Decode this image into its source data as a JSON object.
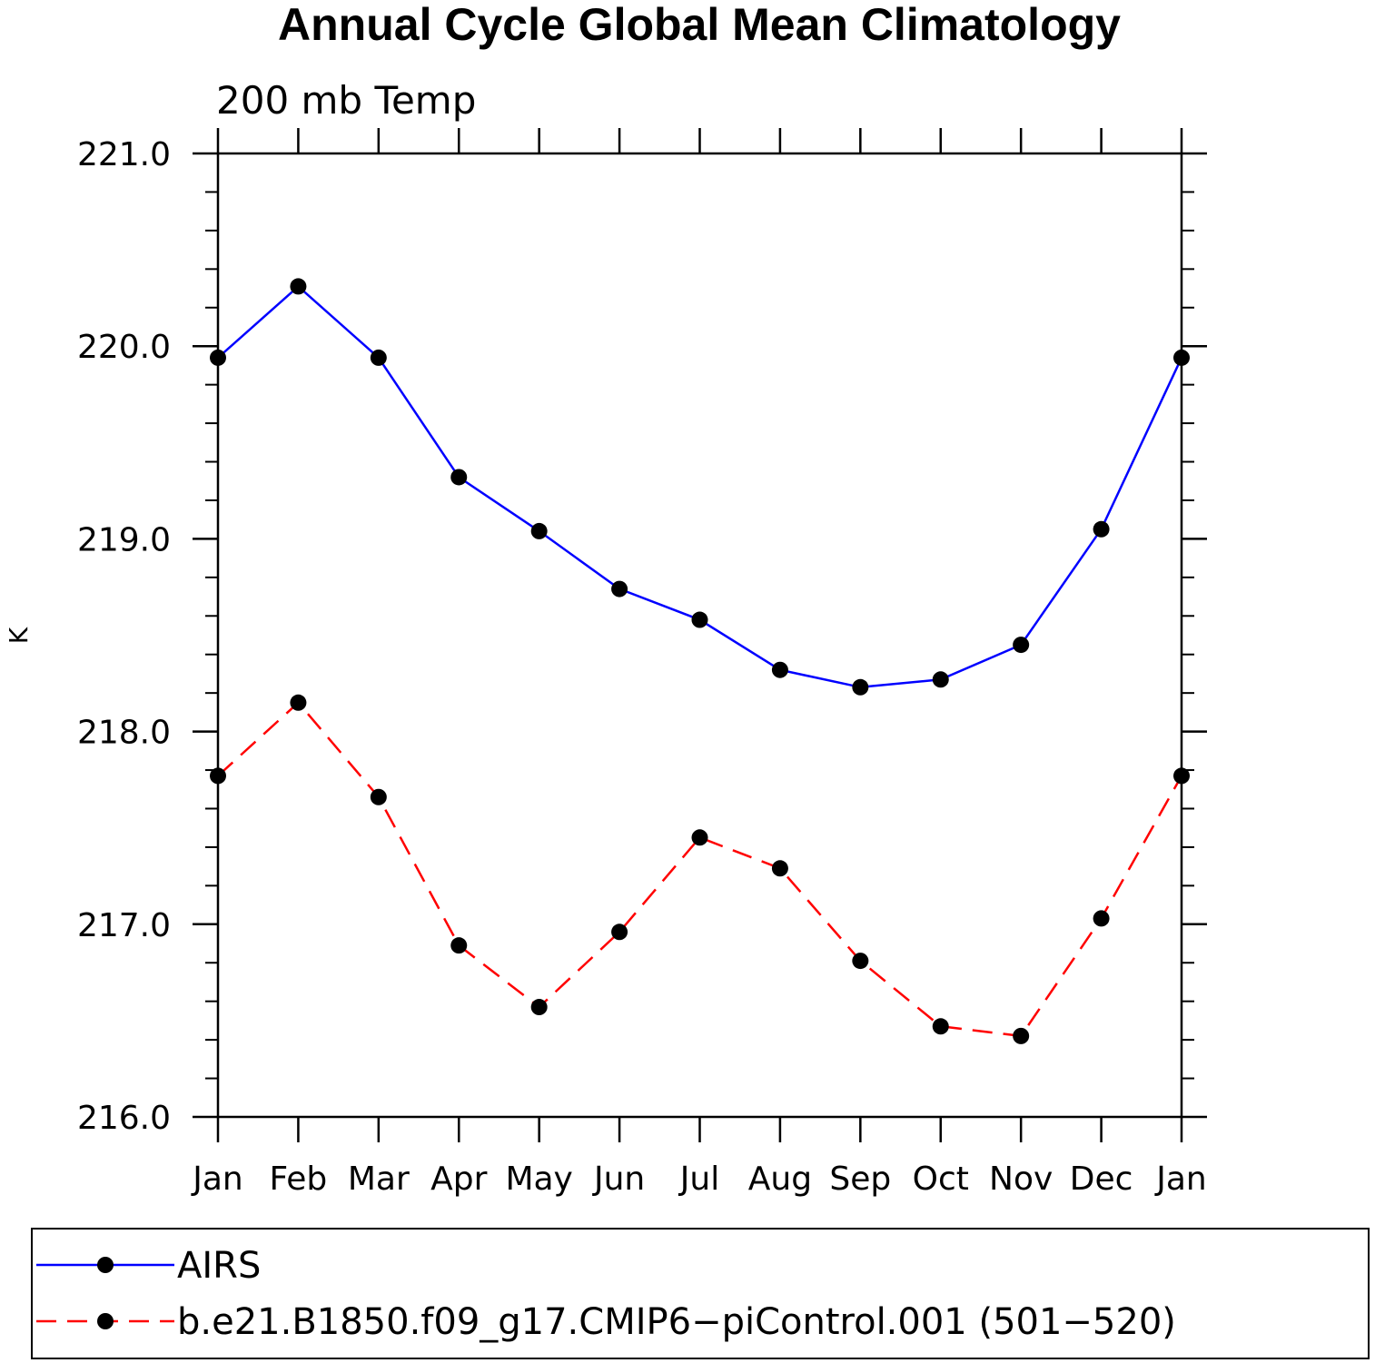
{
  "chart_data": {
    "type": "line",
    "title": "Annual Cycle Global Mean Climatology",
    "subtitle": "200 mb Temp",
    "xlabel": "",
    "ylabel": "K",
    "categories": [
      "Jan",
      "Feb",
      "Mar",
      "Apr",
      "May",
      "Jun",
      "Jul",
      "Aug",
      "Sep",
      "Oct",
      "Nov",
      "Dec",
      "Jan"
    ],
    "ylim": [
      216.0,
      221.0
    ],
    "yticks": [
      "216.0",
      "217.0",
      "218.0",
      "219.0",
      "220.0",
      "221.0"
    ],
    "yminor_step": 0.2,
    "grid": false,
    "legend_position": "bottom",
    "series": [
      {
        "name": "AIRS",
        "color": "#0000ff",
        "dash": "solid",
        "marker": "filled-circle",
        "values": [
          219.94,
          220.31,
          219.94,
          219.32,
          219.04,
          218.74,
          218.58,
          218.32,
          218.23,
          218.27,
          218.45,
          219.05,
          219.94
        ]
      },
      {
        "name": "b.e21.B1850.f09_g17.CMIP6−piControl.001 (501−520)",
        "color": "#ff0000",
        "dash": "dashed",
        "marker": "filled-circle",
        "values": [
          217.77,
          218.15,
          217.66,
          216.89,
          216.57,
          216.96,
          217.45,
          217.29,
          216.81,
          216.47,
          216.42,
          217.03,
          217.77
        ]
      }
    ]
  }
}
